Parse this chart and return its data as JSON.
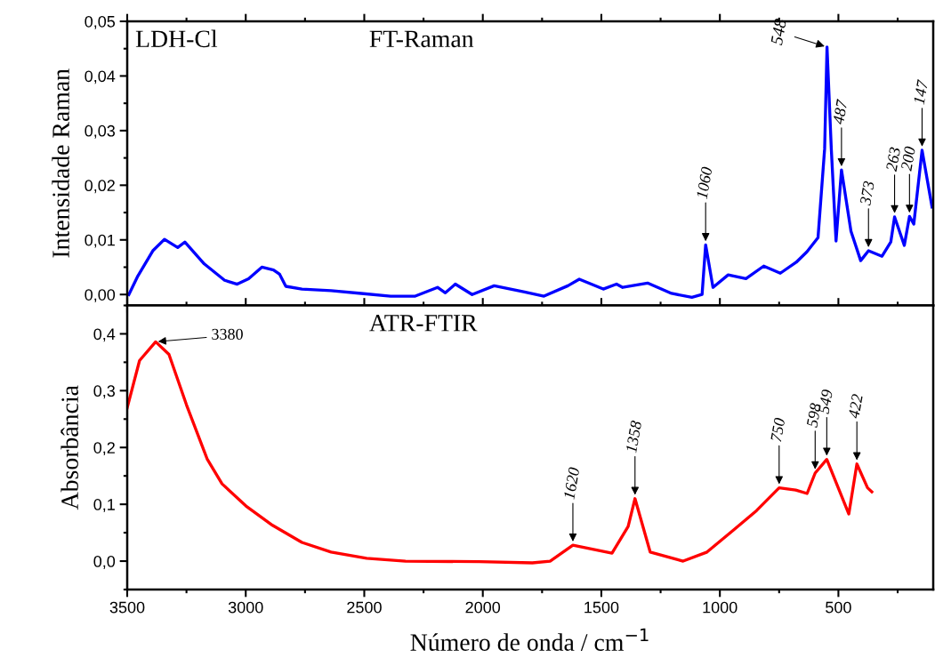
{
  "chart_data": [
    {
      "type": "line",
      "ylabel": "Intensidade Raman",
      "xlim": [
        3500,
        100
      ],
      "ylim": [
        -0.002,
        0.05
      ],
      "xticks": [
        3500,
        3000,
        2500,
        2000,
        1500,
        1000,
        500
      ],
      "yticks": [
        {
          "value": 0,
          "label": "0,00"
        },
        {
          "value": 0.01,
          "label": "0,01"
        },
        {
          "value": 0.02,
          "label": "0,02"
        },
        {
          "value": 0.03,
          "label": "0,03"
        },
        {
          "value": 0.04,
          "label": "0,04"
        },
        {
          "value": 0.05,
          "label": "0,05"
        }
      ],
      "tick_labels": "y",
      "grid": false,
      "legend": false,
      "series": [
        {
          "color": "#0000ff",
          "x": [
            3493,
            3455,
            3392,
            3343,
            3287,
            3257,
            3175,
            3089,
            3036,
            2988,
            2932,
            2883,
            2857,
            2831,
            2763,
            2640,
            2513,
            2389,
            2285,
            2191,
            2158,
            2116,
            2045,
            1952,
            1828,
            1742,
            1641,
            1593,
            1492,
            1436,
            1410,
            1305,
            1204,
            1118,
            1075,
            1060,
            1029,
            965,
            890,
            815,
            745,
            678,
            633,
            586,
            558,
            548,
            530,
            510,
            487,
            447,
            406,
            373,
            316,
            279,
            263,
            222,
            200,
            182,
            147,
            105
          ],
          "values": [
            0.0,
            0.0034,
            0.008,
            0.0101,
            0.0086,
            0.0096,
            0.0056,
            0.0026,
            0.0019,
            0.0029,
            0.005,
            0.0045,
            0.0037,
            0.0015,
            0.001,
            0.0007,
            0.0002,
            -0.0003,
            -0.0003,
            0.0013,
            0.0003,
            0.0019,
            0.0,
            0.0016,
            0.0005,
            -0.0003,
            0.0016,
            0.0028,
            0.001,
            0.0019,
            0.0013,
            0.0021,
            0.0002,
            -0.0005,
            0.0,
            0.0091,
            0.0013,
            0.0036,
            0.0029,
            0.0052,
            0.0039,
            0.0059,
            0.0078,
            0.0104,
            0.0267,
            0.0453,
            0.0267,
            0.0098,
            0.0228,
            0.0116,
            0.0062,
            0.008,
            0.007,
            0.0096,
            0.0142,
            0.009,
            0.0143,
            0.0129,
            0.0264,
            0.016
          ]
        }
      ],
      "annotations": [
        "LDH-Cl",
        "FT-Raman",
        {
          "text": "1060",
          "x": 1060,
          "y": 0.0091
        },
        {
          "text": "548",
          "x": 548,
          "y": 0.0453
        },
        {
          "text": "487",
          "x": 487,
          "y": 0.0228
        },
        {
          "text": "373",
          "x": 373,
          "y": 0.008
        },
        {
          "text": "263",
          "x": 263,
          "y": 0.0142
        },
        {
          "text": "200",
          "x": 200,
          "y": 0.0143
        },
        {
          "text": "147",
          "x": 147,
          "y": 0.0264
        }
      ]
    },
    {
      "type": "line",
      "xlabel": "Número de onda / cm$^{−1}$",
      "ylabel": "Absorbância",
      "xlim": [
        3500,
        100
      ],
      "ylim": [
        -0.05,
        0.45
      ],
      "xticks": [
        3500,
        3000,
        2500,
        2000,
        1500,
        1000,
        500
      ],
      "yticks": [
        {
          "value": 0,
          "label": "0,0"
        },
        {
          "value": 0.1,
          "label": "0,1"
        },
        {
          "value": 0.2,
          "label": "0,2"
        },
        {
          "value": 0.3,
          "label": "0,3"
        },
        {
          "value": 0.4,
          "label": "0,4"
        }
      ],
      "grid": false,
      "legend": false,
      "series": [
        {
          "color": "#ff0000",
          "x": [
            3500,
            3448,
            3380,
            3324,
            3250,
            3163,
            3100,
            2999,
            2887,
            2763,
            2640,
            2490,
            2326,
            2015,
            1791,
            1716,
            1620,
            1455,
            1387,
            1358,
            1294,
            1155,
            1054,
            942,
            845,
            750,
            680,
            632,
            598,
            549,
            456,
            422,
            377,
            359
          ],
          "values": [
            0.27,
            0.353,
            0.386,
            0.364,
            0.275,
            0.18,
            0.136,
            0.097,
            0.063,
            0.033,
            0.016,
            0.005,
            0.0,
            -0.001,
            -0.003,
            0.0,
            0.028,
            0.014,
            0.061,
            0.11,
            0.016,
            0.0,
            0.016,
            0.055,
            0.089,
            0.129,
            0.125,
            0.119,
            0.155,
            0.179,
            0.083,
            0.171,
            0.129,
            0.122
          ]
        }
      ],
      "annotations": [
        "ATR-FTIR",
        {
          "text": "3380",
          "x": 3380,
          "y": 0.386
        },
        {
          "text": "1620",
          "x": 1620,
          "y": 0.028
        },
        {
          "text": "1358",
          "x": 1358,
          "y": 0.11
        },
        {
          "text": "750",
          "x": 750,
          "y": 0.129
        },
        {
          "text": "598",
          "x": 598,
          "y": 0.155
        },
        {
          "text": "549",
          "x": 549,
          "y": 0.179
        },
        {
          "text": "422",
          "x": 422,
          "y": 0.171
        }
      ]
    }
  ]
}
